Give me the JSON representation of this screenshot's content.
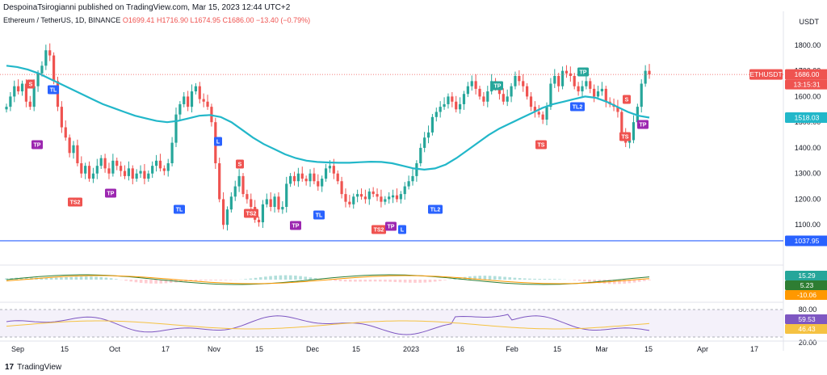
{
  "header": {
    "published": "DespoinaTsirogianni published on TradingView.com, Mar 15, 2023 12:44 UTC+2",
    "symbol": "Ethereum / TetherUS, 1D, BINANCE",
    "ohlc": "O1699.41 H1716.90 L1674.95 C1686.00 −13.40 (−0.79%)",
    "currency": "USDT"
  },
  "footer": {
    "brand": "TradingView",
    "logo_glyph": "17"
  },
  "colors": {
    "up": "#26a69a",
    "down": "#ef5350",
    "ma": "#22b7c9",
    "support": "#2962ff",
    "rsi": "#7e57c2",
    "rsi_ma": "#f5c242",
    "macd": "#2e7d32",
    "signal": "#ff9800",
    "tp": "#9c27b0",
    "tl": "#2962ff",
    "ts": "#ef5350"
  },
  "chart_data": [
    {
      "type": "candlestick",
      "title": "Ethereum / TetherUS, 1D, BINANCE",
      "y_axis_labels": [
        "1800.00",
        "1700.00",
        "1600.00",
        "1500.00",
        "1400.00",
        "1300.00",
        "1200.00",
        "1100.00"
      ],
      "y_ticks": [
        1800,
        1700,
        1600,
        1500,
        1400,
        1300,
        1200,
        1100
      ],
      "ylim": [
        1000,
        1850
      ],
      "x_axis_labels": [
        "Sep",
        "15",
        "Oct",
        "17",
        "Nov",
        "15",
        "Dec",
        "15",
        "2023",
        "16",
        "Feb",
        "15",
        "Mar",
        "15",
        "Apr",
        "17"
      ],
      "x_axis_positions": [
        22,
        80,
        142,
        205,
        265,
        321,
        387,
        441,
        509,
        570,
        634,
        690,
        745,
        803,
        870,
        934
      ],
      "candles_close": [
        1560,
        1600,
        1640,
        1620,
        1650,
        1580,
        1560,
        1640,
        1690,
        1720,
        1780,
        1760,
        1660,
        1560,
        1480,
        1440,
        1380,
        1410,
        1340,
        1300,
        1330,
        1280,
        1300,
        1330,
        1360,
        1320,
        1300,
        1350,
        1330,
        1310,
        1290,
        1320,
        1280,
        1300,
        1310,
        1280,
        1300,
        1330,
        1350,
        1320,
        1310,
        1340,
        1420,
        1530,
        1570,
        1600,
        1560,
        1620,
        1640,
        1590,
        1580,
        1560,
        1500,
        1340,
        1200,
        1100,
        1160,
        1210,
        1250,
        1290,
        1220,
        1200,
        1170,
        1120,
        1110,
        1180,
        1200,
        1170,
        1210,
        1160,
        1170,
        1260,
        1290,
        1270,
        1300,
        1280,
        1270,
        1300,
        1270,
        1250,
        1280,
        1320,
        1330,
        1300,
        1270,
        1220,
        1190,
        1180,
        1210,
        1220,
        1210,
        1200,
        1230,
        1220,
        1210,
        1190,
        1200,
        1210,
        1215,
        1200,
        1220,
        1250,
        1270,
        1290,
        1340,
        1400,
        1440,
        1460,
        1520,
        1540,
        1560,
        1570,
        1600,
        1580,
        1550,
        1570,
        1610,
        1640,
        1660,
        1630,
        1600,
        1580,
        1620,
        1660,
        1640,
        1610,
        1580,
        1600,
        1640,
        1680,
        1660,
        1640,
        1600,
        1560,
        1540,
        1530,
        1510,
        1560,
        1650,
        1680,
        1640,
        1700,
        1690,
        1680,
        1640,
        1620,
        1640,
        1660,
        1630,
        1600,
        1620,
        1630,
        1580,
        1570,
        1560,
        1540,
        1460,
        1420,
        1430,
        1500,
        1560,
        1650,
        1700,
        1686
      ],
      "candle_colors": [
        1,
        1,
        1,
        0,
        1,
        0,
        0,
        1,
        1,
        1,
        1,
        0,
        0,
        0,
        0,
        0,
        0,
        1,
        0,
        0,
        1,
        0,
        1,
        1,
        1,
        0,
        0,
        1,
        0,
        0,
        0,
        1,
        0,
        1,
        1,
        0,
        1,
        1,
        1,
        0,
        0,
        1,
        1,
        1,
        1,
        1,
        0,
        1,
        1,
        0,
        0,
        0,
        0,
        0,
        0,
        0,
        1,
        1,
        1,
        1,
        0,
        0,
        0,
        0,
        0,
        1,
        1,
        0,
        1,
        0,
        1,
        1,
        1,
        0,
        1,
        0,
        0,
        1,
        0,
        0,
        1,
        1,
        1,
        0,
        0,
        0,
        0,
        0,
        1,
        1,
        0,
        0,
        1,
        0,
        0,
        0,
        1,
        1,
        1,
        0,
        1,
        1,
        1,
        1,
        1,
        1,
        1,
        1,
        1,
        1,
        1,
        1,
        1,
        0,
        0,
        1,
        1,
        1,
        1,
        0,
        0,
        0,
        1,
        1,
        0,
        0,
        0,
        1,
        1,
        1,
        0,
        0,
        0,
        0,
        0,
        0,
        0,
        1,
        1,
        1,
        0,
        1,
        0,
        0,
        0,
        0,
        1,
        1,
        0,
        0,
        1,
        1,
        0,
        0,
        0,
        0,
        0,
        0,
        1,
        1,
        1,
        1,
        1,
        0
      ],
      "ma_line": [
        1720,
        1715,
        1705,
        1690,
        1670,
        1650,
        1630,
        1610,
        1590,
        1570,
        1555,
        1540,
        1525,
        1515,
        1505,
        1500,
        1505,
        1515,
        1525,
        1528,
        1520,
        1500,
        1470,
        1440,
        1415,
        1395,
        1375,
        1360,
        1350,
        1345,
        1343,
        1342,
        1342,
        1344,
        1346,
        1345,
        1340,
        1330,
        1320,
        1315,
        1320,
        1335,
        1360,
        1390,
        1420,
        1450,
        1475,
        1495,
        1515,
        1535,
        1555,
        1570,
        1580,
        1590,
        1600,
        1595,
        1580,
        1560,
        1540,
        1525,
        1518
      ],
      "current_price": "1686.00",
      "current_label": "ETHUSDT",
      "countdown": "13:15:31",
      "ma_value": "1518.03",
      "support_value": "1037.95",
      "signals": [
        {
          "label": "S",
          "kind": "ts"
        },
        {
          "label": "TL",
          "kind": "tl"
        },
        {
          "label": "TP",
          "kind": "tp"
        },
        {
          "label": "TS2",
          "kind": "ts"
        },
        {
          "label": "TP",
          "kind": "tp"
        },
        {
          "label": "TL",
          "kind": "tl"
        },
        {
          "label": "L",
          "kind": "tl"
        },
        {
          "label": "S",
          "kind": "ts"
        },
        {
          "label": "TS2",
          "kind": "ts"
        },
        {
          "label": "TP",
          "kind": "tp"
        },
        {
          "label": "TL",
          "kind": "tl"
        },
        {
          "label": "TS2",
          "kind": "ts"
        },
        {
          "label": "TP",
          "kind": "tp"
        },
        {
          "label": "L",
          "kind": "tl"
        },
        {
          "label": "TL2",
          "kind": "tl"
        },
        {
          "label": "TP",
          "kind": "up"
        },
        {
          "label": "TS",
          "kind": "ts"
        },
        {
          "label": "TP",
          "kind": "up"
        },
        {
          "label": "TL2",
          "kind": "tl"
        },
        {
          "label": "S",
          "kind": "ts"
        },
        {
          "label": "TS",
          "kind": "ts"
        },
        {
          "label": "TP",
          "kind": "tp"
        }
      ]
    },
    {
      "type": "macd",
      "values": [
        "15.29",
        "5.23",
        "-10.06"
      ]
    },
    {
      "type": "rsi",
      "y_axis_labels": [
        "80.00",
        "20.00"
      ],
      "values": [
        "59.53",
        "46.43"
      ]
    }
  ]
}
